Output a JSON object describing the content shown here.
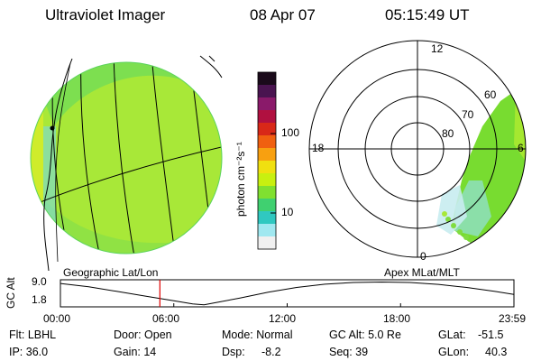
{
  "header": {
    "instrument": "Ultraviolet Imager",
    "date": "08 Apr 07",
    "time": "05:15:49 UT"
  },
  "colorbar": {
    "unit_label": "photon cm⁻²s⁻¹",
    "tick_labels": [
      "100",
      "10"
    ],
    "colors": [
      "#1a0a1a",
      "#4a1450",
      "#8a1a6a",
      "#b01040",
      "#d82818",
      "#f06010",
      "#f8a010",
      "#f0e010",
      "#c8f010",
      "#80e030",
      "#40d070",
      "#30c8c0",
      "#a0e8f0",
      "#f0f0f0"
    ]
  },
  "globe_panel": {
    "label": "Geographic Lat/Lon"
  },
  "polar_panel": {
    "label": "Apex MLat/MLT",
    "mlt_labels": [
      "12",
      "18",
      "6",
      "0"
    ],
    "lat_labels": [
      "60",
      "70",
      "80"
    ]
  },
  "altitude_plot": {
    "ylabel": "GC Alt",
    "y_ticks": [
      "9.0",
      "1.8"
    ],
    "x_ticks": [
      "00:00",
      "06:00",
      "12:00",
      "18:00",
      "23:59"
    ],
    "marker_time": "05:15:49"
  },
  "info": {
    "filter": "Flt: LBHL",
    "ip": "IP: 36.0",
    "door": "Door: Open",
    "gain": "Gain: 14",
    "mode": "Mode: Normal",
    "dsp_label": "Dsp:",
    "dsp_value": "-8.2",
    "gc_alt": "GC Alt: 5.0 Re",
    "seq": "Seq: 39",
    "glat_label": "GLat:",
    "glat_value": "-51.5",
    "glon_label": "GLon:",
    "glon_value": "40.3"
  }
}
